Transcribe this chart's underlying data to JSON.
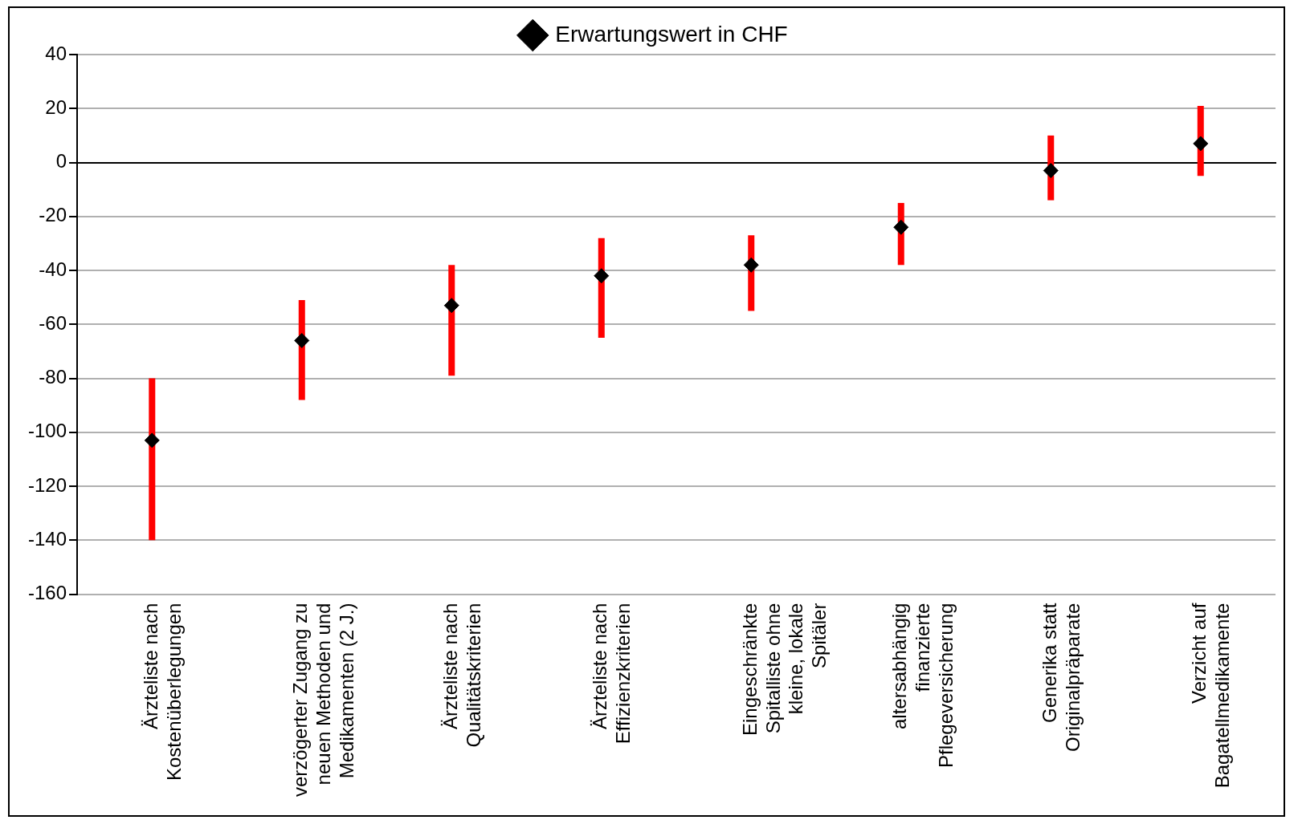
{
  "chart_data": {
    "type": "scatter",
    "categories": [
      "Ärzteliste nach Kostenüberlegungen",
      "verzögerter Zugang zu neuen Methoden und Medikamenten (2 J.)",
      "Ärzteliste nach Qualitätskriterien",
      "Ärzteliste nach Effizienzkriterien",
      "Eingeschränkte Spitalliste ohne kleine, lokale Spitäler",
      "altersabhängig finanzierte Pflegeversicherung",
      "Generika statt Originalpräparate",
      "Verzicht auf Bagatellmedikamente"
    ],
    "series": [
      {
        "name": "Erwartungswert in CHF",
        "color": "#000000",
        "values": [
          -103,
          -66,
          -53,
          -42,
          -38,
          -24,
          -3,
          7
        ],
        "errors": [
          [
            -140,
            -80
          ],
          [
            -88,
            -51
          ],
          [
            -79,
            -38
          ],
          [
            -65,
            -28
          ],
          [
            -55,
            -27
          ],
          [
            -38,
            -15
          ],
          [
            -14,
            10
          ],
          [
            -5,
            21
          ]
        ]
      }
    ],
    "ylim": [
      -160,
      40
    ],
    "yticks": [
      -160,
      -140,
      -120,
      -100,
      -80,
      -60,
      -40,
      -20,
      0,
      20,
      40
    ],
    "grid": "y",
    "legend": "top",
    "marker": "diamond"
  }
}
